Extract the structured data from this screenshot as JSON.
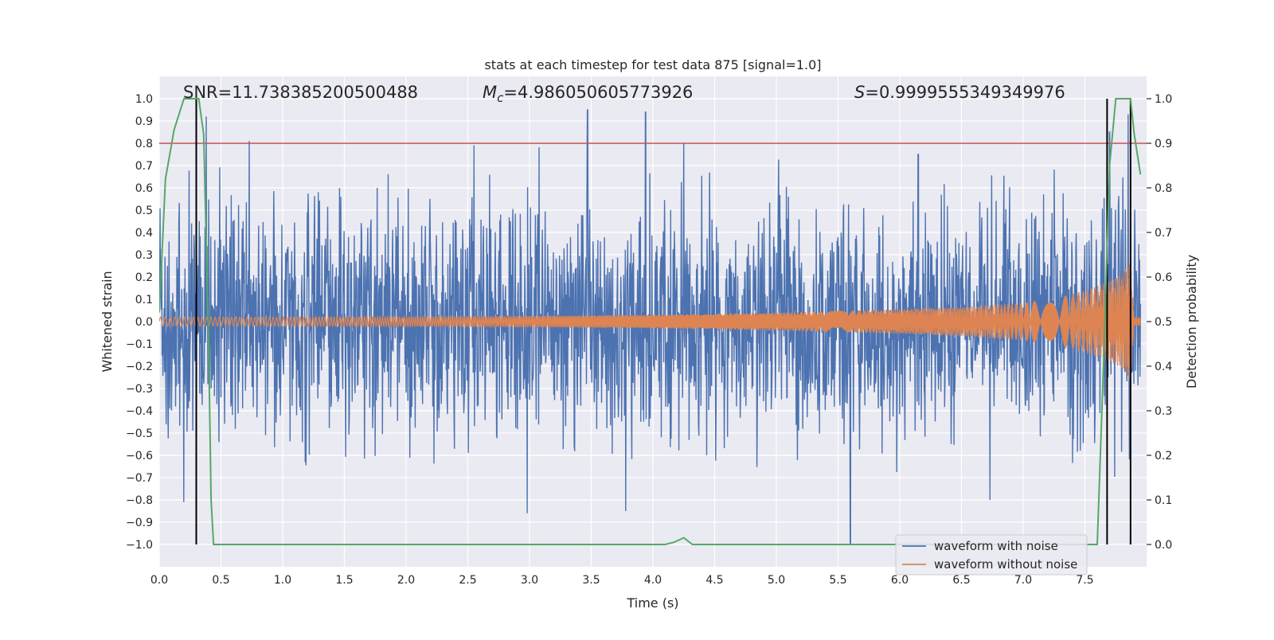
{
  "chart_data": {
    "type": "line",
    "title": "stats at each timestep for test data 875 [signal=1.0]",
    "xlabel": "Time (s)",
    "ylabel": "Whitened strain",
    "y2label": "Detection probability",
    "xlim": [
      0.0,
      8.0
    ],
    "ylim": [
      -1.1,
      1.1
    ],
    "y2lim": [
      -0.05,
      1.05
    ],
    "xticks": [
      "0.0",
      "0.5",
      "1.0",
      "1.5",
      "2.0",
      "2.5",
      "3.0",
      "3.5",
      "4.0",
      "4.5",
      "5.0",
      "5.5",
      "6.0",
      "6.5",
      "7.0",
      "7.5"
    ],
    "yticks": [
      "1.0",
      "0.9",
      "0.8",
      "0.7",
      "0.6",
      "0.5",
      "0.4",
      "0.3",
      "0.2",
      "0.1",
      "0.0",
      "−0.1",
      "−0.2",
      "−0.3",
      "−0.4",
      "−0.5",
      "−0.6",
      "−0.7",
      "−0.8",
      "−0.9",
      "−1.0"
    ],
    "y2ticks": [
      "1.0",
      "0.9",
      "0.8",
      "0.7",
      "0.6",
      "0.5",
      "0.4",
      "0.3",
      "0.2",
      "0.1",
      "0.0"
    ],
    "grid": true,
    "legend_position": "bottom-right",
    "annotations": {
      "snr": "SNR=11.738385200500488",
      "mc_symbol": "M",
      "mc_sub": "c",
      "mc_value": "=4.986050605773926",
      "s_symbol": "S",
      "s_value": "=0.9999555349349976"
    },
    "threshold": 0.9,
    "vlines_x": [
      0.3,
      7.68,
      7.87
    ],
    "series": [
      {
        "name": "waveform with noise",
        "color": "#4c72b0",
        "description_range": "dense noise, amplitude mostly within ±0.6, peaks near ±0.95",
        "envelope_samples": [
          [
            0.0,
            0.55
          ],
          [
            0.5,
            0.6
          ],
          [
            1.0,
            0.6
          ],
          [
            1.5,
            0.6
          ],
          [
            2.0,
            0.62
          ],
          [
            2.5,
            0.6
          ],
          [
            3.0,
            0.62
          ],
          [
            3.5,
            0.6
          ],
          [
            4.0,
            0.62
          ],
          [
            4.5,
            0.6
          ],
          [
            5.0,
            0.62
          ],
          [
            5.5,
            0.62
          ],
          [
            6.0,
            0.62
          ],
          [
            6.5,
            0.62
          ],
          [
            7.0,
            0.62
          ],
          [
            7.5,
            0.62
          ],
          [
            7.9,
            0.6
          ]
        ],
        "peaks": [
          [
            0.38,
            0.92
          ],
          [
            0.73,
            0.81
          ],
          [
            2.55,
            0.79
          ],
          [
            3.47,
            0.95
          ],
          [
            3.94,
            0.94
          ],
          [
            4.25,
            0.8
          ],
          [
            5.6,
            -1.0
          ],
          [
            6.15,
            0.75
          ],
          [
            7.7,
            0.85
          ],
          [
            7.85,
            0.93
          ],
          [
            2.98,
            -0.86
          ],
          [
            3.78,
            -0.85
          ],
          [
            6.73,
            -0.8
          ],
          [
            0.2,
            -0.81
          ]
        ]
      },
      {
        "name": "waveform without noise",
        "color": "#dd8452",
        "amplitude_envelope": [
          [
            0.0,
            0.02
          ],
          [
            1.0,
            0.02
          ],
          [
            2.0,
            0.022
          ],
          [
            3.0,
            0.025
          ],
          [
            4.0,
            0.03
          ],
          [
            5.0,
            0.04
          ],
          [
            6.0,
            0.055
          ],
          [
            6.5,
            0.065
          ],
          [
            7.0,
            0.085
          ],
          [
            7.3,
            0.11
          ],
          [
            7.5,
            0.14
          ],
          [
            7.7,
            0.18
          ],
          [
            7.8,
            0.21
          ],
          [
            7.87,
            0.27
          ],
          [
            7.9,
            0.02
          ],
          [
            8.0,
            0.02
          ]
        ]
      },
      {
        "name": "",
        "color": "#55a868",
        "axis": "right",
        "x": [
          0.0,
          0.05,
          0.12,
          0.2,
          0.28,
          0.32,
          0.36,
          0.4,
          0.42,
          0.44,
          0.5,
          4.1,
          4.17,
          4.25,
          4.32,
          7.6,
          7.65,
          7.7,
          7.75,
          7.8,
          7.87,
          7.9,
          7.95
        ],
        "y": [
          0.52,
          0.82,
          0.93,
          1.0,
          1.0,
          1.0,
          0.92,
          0.45,
          0.1,
          0.0,
          0.0,
          0.0,
          0.005,
          0.015,
          0.0,
          0.0,
          0.4,
          0.85,
          1.0,
          1.0,
          1.0,
          0.92,
          0.83
        ]
      }
    ]
  }
}
